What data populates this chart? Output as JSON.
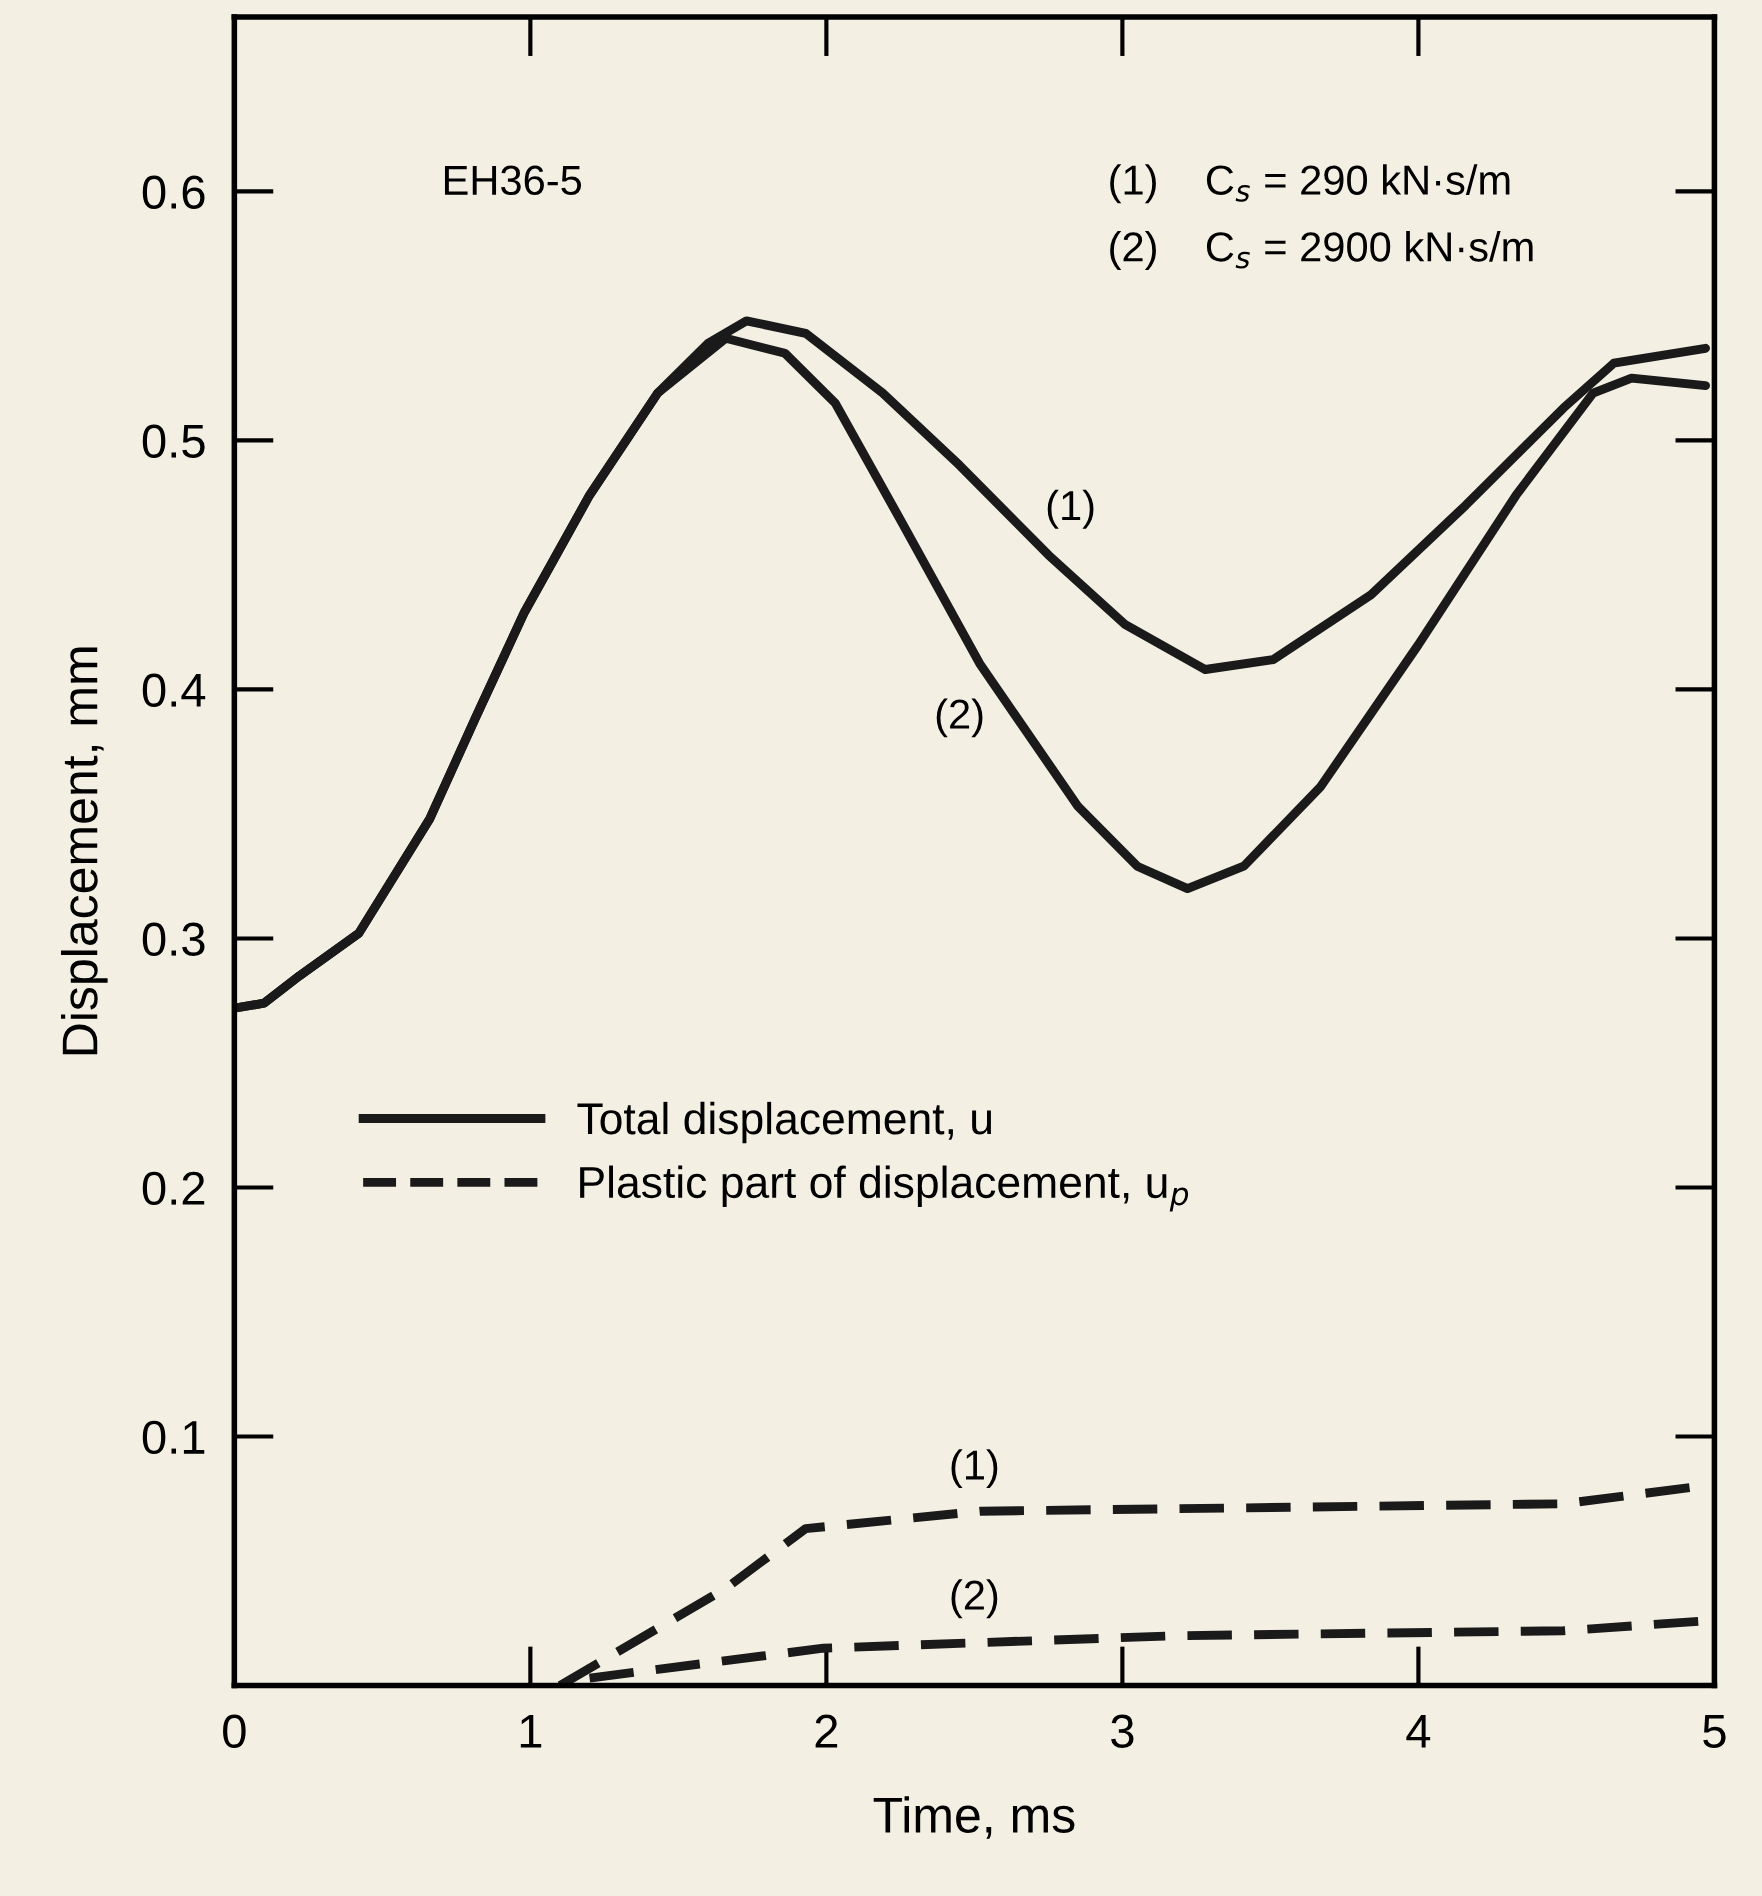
{
  "chart_data": {
    "type": "line",
    "xlabel": "Time, ms",
    "ylabel": "Displacement, mm",
    "xlim": [
      0,
      5
    ],
    "ylim": [
      0,
      0.67
    ],
    "xticks": [
      0,
      1,
      2,
      3,
      4,
      5
    ],
    "yticks": [
      0.1,
      0.2,
      0.3,
      0.4,
      0.5,
      0.6
    ],
    "grid": false,
    "legend": "left",
    "marker": "none",
    "series": [
      {
        "name": "Total displacement, u",
        "color": "#1a1a1a",
        "line_style": "solid",
        "x": [
          0,
          0.1,
          0.22,
          0.42,
          0.66,
          0.82,
          0.98,
          1.2,
          1.43,
          1.6,
          1.73,
          1.93,
          2.19,
          2.45,
          2.75,
          3.01,
          3.28,
          3.51,
          3.84,
          4.16,
          4.49,
          4.66,
          4.97
        ],
        "values": [
          0.272,
          0.274,
          0.285,
          0.302,
          0.348,
          0.39,
          0.431,
          0.478,
          0.519,
          0.539,
          0.548,
          0.543,
          0.519,
          0.49,
          0.454,
          0.426,
          0.408,
          0.412,
          0.438,
          0.474,
          0.513,
          0.531,
          0.537
        ]
      },
      {
        "color": "#1a1a1a",
        "line_style": "solid",
        "x": [
          0,
          0.1,
          0.22,
          0.42,
          0.66,
          0.82,
          0.98,
          1.2,
          1.43,
          1.66,
          1.86,
          2.03,
          2.26,
          2.52,
          2.85,
          3.05,
          3.22,
          3.41,
          3.67,
          4.0,
          4.33,
          4.59,
          4.72,
          4.97
        ],
        "values": [
          0.272,
          0.274,
          0.285,
          0.302,
          0.348,
          0.39,
          0.431,
          0.478,
          0.519,
          0.541,
          0.535,
          0.515,
          0.466,
          0.41,
          0.353,
          0.329,
          0.32,
          0.329,
          0.361,
          0.418,
          0.478,
          0.519,
          0.525,
          0.522
        ]
      },
      {
        "name": "Plastic part of displacement, u$_{p}$",
        "color": "#1a1a1a",
        "line_style": "dashed",
        "x": [
          1.1,
          1.66,
          1.93,
          2.52,
          4.49,
          4.95
        ],
        "values": [
          0,
          0.039,
          0.063,
          0.07,
          0.073,
          0.08
        ]
      },
      {
        "color": "#1a1a1a",
        "line_style": "dashed",
        "x": [
          1.2,
          1.99,
          3.18,
          4.49,
          4.97
        ],
        "values": [
          0.003,
          0.015,
          0.02,
          0.022,
          0.026
        ]
      }
    ],
    "annotations": [
      "EH36-5",
      "(1)    C$_{s}$ = 290 kN·s/m",
      "(2)    C$_{s}$ = 2900 kN·s/m",
      "(1)",
      "(2)",
      "(1)",
      "(2)"
    ]
  }
}
